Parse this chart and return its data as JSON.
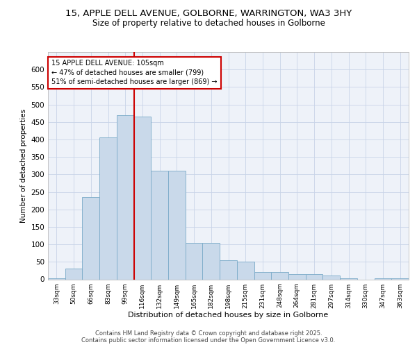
{
  "title_line1": "15, APPLE DELL AVENUE, GOLBORNE, WARRINGTON, WA3 3HY",
  "title_line2": "Size of property relative to detached houses in Golborne",
  "xlabel": "Distribution of detached houses by size in Golborne",
  "ylabel": "Number of detached properties",
  "categories": [
    "33sqm",
    "50sqm",
    "66sqm",
    "83sqm",
    "99sqm",
    "116sqm",
    "132sqm",
    "149sqm",
    "165sqm",
    "182sqm",
    "198sqm",
    "215sqm",
    "231sqm",
    "248sqm",
    "264sqm",
    "281sqm",
    "297sqm",
    "314sqm",
    "330sqm",
    "347sqm",
    "363sqm"
  ],
  "values": [
    3,
    30,
    235,
    405,
    470,
    465,
    310,
    310,
    105,
    105,
    55,
    50,
    20,
    20,
    15,
    15,
    10,
    3,
    0,
    3,
    3
  ],
  "bar_color": "#c9d9ea",
  "bar_edge_color": "#7aaac8",
  "annotation_text": "15 APPLE DELL AVENUE: 105sqm\n← 47% of detached houses are smaller (799)\n51% of semi-detached houses are larger (869) →",
  "vline_x": 4.5,
  "vline_color": "#cc0000",
  "annotation_box_color": "#cc0000",
  "ylim": [
    0,
    650
  ],
  "yticks": [
    0,
    50,
    100,
    150,
    200,
    250,
    300,
    350,
    400,
    450,
    500,
    550,
    600
  ],
  "footer_text": "Contains HM Land Registry data © Crown copyright and database right 2025.\nContains public sector information licensed under the Open Government Licence v3.0.",
  "background_color": "#eef2f9",
  "grid_color": "#c8d4e8"
}
